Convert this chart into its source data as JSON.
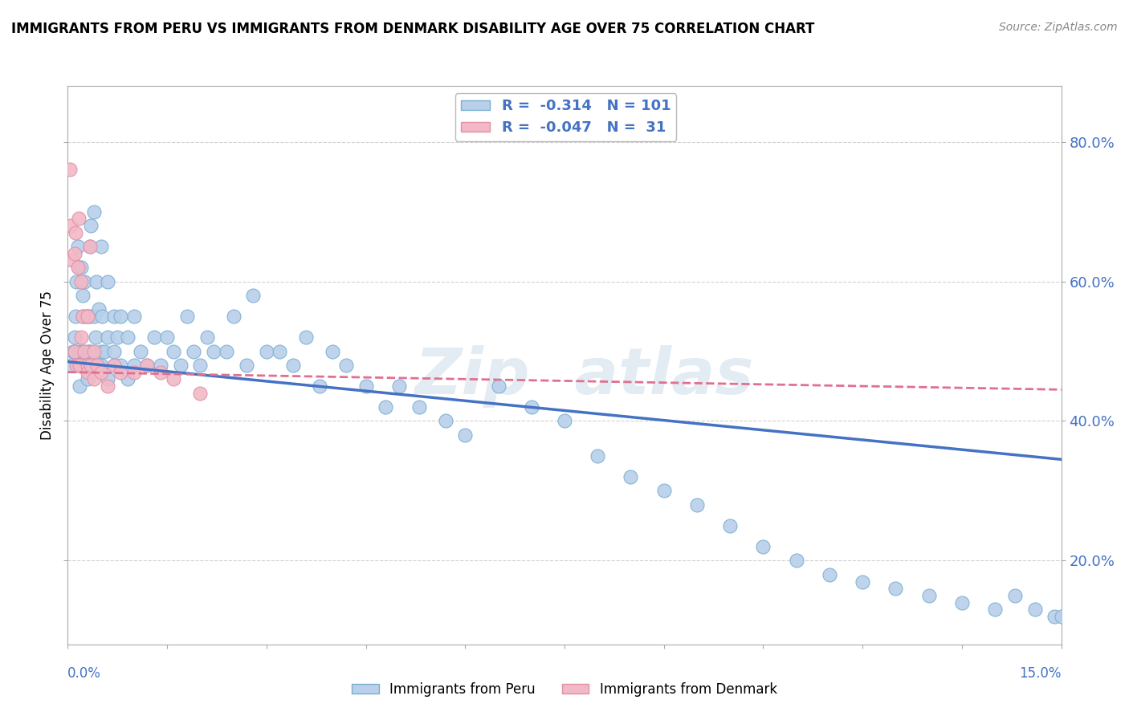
{
  "title": "IMMIGRANTS FROM PERU VS IMMIGRANTS FROM DENMARK DISABILITY AGE OVER 75 CORRELATION CHART",
  "source": "Source: ZipAtlas.com",
  "ylabel": "Disability Age Over 75",
  "xmin": 0.0,
  "xmax": 0.15,
  "ymin": 0.08,
  "ymax": 0.88,
  "yticks": [
    0.2,
    0.4,
    0.6,
    0.8
  ],
  "ytick_labels": [
    "20.0%",
    "40.0%",
    "60.0%",
    "80.0%"
  ],
  "peru_color": "#b8d0ea",
  "peru_edge": "#7aaed0",
  "denmark_color": "#f2b8c6",
  "denmark_edge": "#e090a8",
  "trend_peru_color": "#4472c4",
  "trend_denmark_color": "#e07090",
  "background": "#ffffff",
  "grid_color": "#cccccc",
  "watermark": "ZipAtlas",
  "legend_line1": "R =  -0.314   N = 101",
  "legend_line2": "R =  -0.047   N =  31",
  "bottom_legend_peru": "Immigrants from Peru",
  "bottom_legend_denmark": "Immigrants from Denmark",
  "peru_scatter_x": [
    0.0005,
    0.0008,
    0.001,
    0.001,
    0.0012,
    0.0013,
    0.0015,
    0.0015,
    0.0016,
    0.0017,
    0.0018,
    0.002,
    0.002,
    0.0022,
    0.0023,
    0.0024,
    0.0025,
    0.0025,
    0.0027,
    0.003,
    0.003,
    0.003,
    0.0032,
    0.0033,
    0.0033,
    0.0035,
    0.0035,
    0.004,
    0.004,
    0.004,
    0.0042,
    0.0043,
    0.0045,
    0.0047,
    0.005,
    0.005,
    0.005,
    0.0052,
    0.0055,
    0.006,
    0.006,
    0.006,
    0.007,
    0.007,
    0.007,
    0.0075,
    0.008,
    0.008,
    0.009,
    0.009,
    0.01,
    0.01,
    0.011,
    0.012,
    0.013,
    0.014,
    0.015,
    0.016,
    0.017,
    0.018,
    0.019,
    0.02,
    0.021,
    0.022,
    0.024,
    0.025,
    0.027,
    0.028,
    0.03,
    0.032,
    0.034,
    0.036,
    0.038,
    0.04,
    0.042,
    0.045,
    0.048,
    0.05,
    0.053,
    0.057,
    0.06,
    0.065,
    0.07,
    0.075,
    0.08,
    0.085,
    0.09,
    0.095,
    0.1,
    0.105,
    0.11,
    0.115,
    0.12,
    0.125,
    0.13,
    0.135,
    0.14,
    0.143,
    0.146,
    0.149,
    0.15
  ],
  "peru_scatter_y": [
    0.48,
    0.5,
    0.5,
    0.52,
    0.55,
    0.6,
    0.48,
    0.65,
    0.5,
    0.62,
    0.45,
    0.5,
    0.62,
    0.55,
    0.58,
    0.5,
    0.48,
    0.6,
    0.55,
    0.46,
    0.5,
    0.55,
    0.5,
    0.55,
    0.65,
    0.5,
    0.68,
    0.48,
    0.55,
    0.7,
    0.52,
    0.6,
    0.48,
    0.56,
    0.48,
    0.5,
    0.65,
    0.55,
    0.5,
    0.46,
    0.52,
    0.6,
    0.5,
    0.55,
    0.48,
    0.52,
    0.48,
    0.55,
    0.46,
    0.52,
    0.48,
    0.55,
    0.5,
    0.48,
    0.52,
    0.48,
    0.52,
    0.5,
    0.48,
    0.55,
    0.5,
    0.48,
    0.52,
    0.5,
    0.5,
    0.55,
    0.48,
    0.58,
    0.5,
    0.5,
    0.48,
    0.52,
    0.45,
    0.5,
    0.48,
    0.45,
    0.42,
    0.45,
    0.42,
    0.4,
    0.38,
    0.45,
    0.42,
    0.4,
    0.35,
    0.32,
    0.3,
    0.28,
    0.25,
    0.22,
    0.2,
    0.18,
    0.17,
    0.16,
    0.15,
    0.14,
    0.13,
    0.15,
    0.13,
    0.12,
    0.12
  ],
  "denmark_scatter_x": [
    0.0003,
    0.0005,
    0.0007,
    0.001,
    0.001,
    0.0012,
    0.0013,
    0.0015,
    0.0016,
    0.0018,
    0.002,
    0.002,
    0.0022,
    0.0025,
    0.003,
    0.003,
    0.003,
    0.0033,
    0.0035,
    0.004,
    0.004,
    0.0045,
    0.005,
    0.006,
    0.007,
    0.008,
    0.01,
    0.012,
    0.014,
    0.016,
    0.02
  ],
  "denmark_scatter_y": [
    0.76,
    0.68,
    0.63,
    0.64,
    0.5,
    0.67,
    0.48,
    0.62,
    0.69,
    0.48,
    0.52,
    0.6,
    0.55,
    0.5,
    0.48,
    0.55,
    0.47,
    0.65,
    0.48,
    0.5,
    0.46,
    0.48,
    0.47,
    0.45,
    0.48,
    0.47,
    0.47,
    0.48,
    0.47,
    0.46,
    0.44
  ],
  "peru_trend_x0": 0.0,
  "peru_trend_x1": 0.15,
  "peru_trend_y0": 0.485,
  "peru_trend_y1": 0.345,
  "denmark_trend_x0": 0.0,
  "denmark_trend_x1": 0.15,
  "denmark_trend_y0": 0.47,
  "denmark_trend_y1": 0.445
}
